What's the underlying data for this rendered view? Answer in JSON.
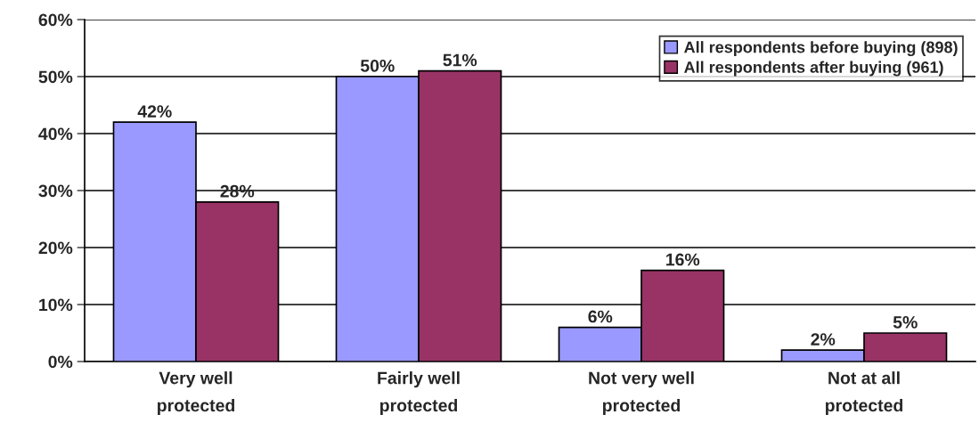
{
  "chart_data": {
    "type": "bar",
    "categories": [
      "Very well\nprotected",
      "Fairly well\nprotected",
      "Not very well\nprotected",
      "Not at all\nprotected"
    ],
    "series": [
      {
        "name": "All respondents before buying (898)",
        "color": "#9999ff",
        "values": [
          42,
          50,
          6,
          2
        ],
        "value_labels": [
          "42%",
          "50%",
          "6%",
          "2%"
        ]
      },
      {
        "name": "All respondents after buying (961)",
        "color": "#993366",
        "values": [
          28,
          51,
          16,
          5
        ],
        "value_labels": [
          "28%",
          "51%",
          "16%",
          "5%"
        ]
      }
    ],
    "ylim": [
      0,
      60
    ],
    "yticks": [
      {
        "value": 0,
        "label": "0%"
      },
      {
        "value": 10,
        "label": "10%"
      },
      {
        "value": 20,
        "label": "20%"
      },
      {
        "value": 30,
        "label": "30%"
      },
      {
        "value": 40,
        "label": "40%"
      },
      {
        "value": 50,
        "label": "50%"
      },
      {
        "value": 60,
        "label": "60%"
      }
    ],
    "grid": "y",
    "legend": "top right"
  }
}
